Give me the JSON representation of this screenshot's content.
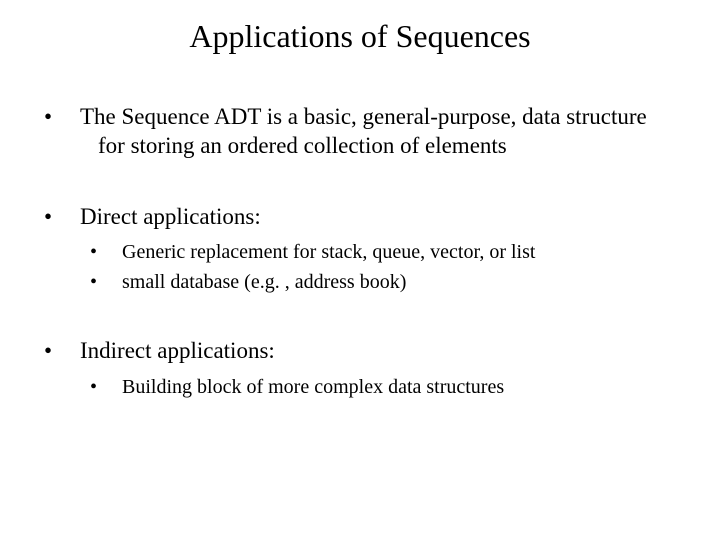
{
  "title": "Applications of Sequences",
  "bullets": {
    "b1": "The Sequence ADT is a basic, general-purpose, data structure for storing an ordered collection of elements",
    "b2": "Direct applications:",
    "b2_sub1": "Generic replacement for stack, queue, vector, or list",
    "b2_sub2": "small database (e.g. , address book)",
    "b3": "Indirect applications:",
    "b3_sub1": "Building block of more complex data structures"
  },
  "colors": {
    "background": "#ffffff",
    "text": "#000000"
  },
  "typography": {
    "font_family": "Times New Roman",
    "title_size_pt": 32,
    "l1_size_pt": 23,
    "l2_size_pt": 20
  }
}
